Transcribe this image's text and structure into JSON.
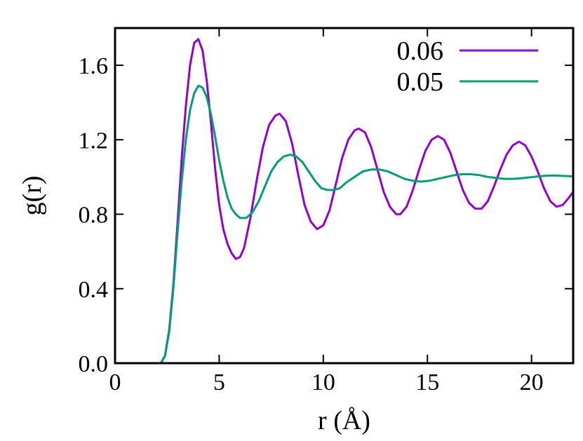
{
  "chart_data": {
    "type": "line",
    "title": "",
    "xlabel": "r (Å)",
    "ylabel": "g(r)",
    "xlim": [
      0,
      22
    ],
    "ylim": [
      0,
      1.8
    ],
    "xticks": [
      0,
      5,
      10,
      15,
      20
    ],
    "yticks": [
      0.0,
      0.4,
      0.8,
      1.2,
      1.6
    ],
    "xtick_labels": [
      "0",
      "5",
      "10",
      "15",
      "20"
    ],
    "ytick_labels": [
      "0.0",
      "0.4",
      "0.8",
      "1.2",
      "1.6"
    ],
    "grid": false,
    "legend": "top-right",
    "series": [
      {
        "name": "0.06",
        "color": "#9400d3",
        "points": [
          [
            2.0,
            0.0
          ],
          [
            2.2,
            0.0
          ],
          [
            2.4,
            0.04
          ],
          [
            2.6,
            0.18
          ],
          [
            2.8,
            0.42
          ],
          [
            3.0,
            0.75
          ],
          [
            3.2,
            1.1
          ],
          [
            3.4,
            1.38
          ],
          [
            3.6,
            1.6
          ],
          [
            3.8,
            1.72
          ],
          [
            4.0,
            1.74
          ],
          [
            4.2,
            1.68
          ],
          [
            4.4,
            1.52
          ],
          [
            4.6,
            1.3
          ],
          [
            4.8,
            1.05
          ],
          [
            5.0,
            0.85
          ],
          [
            5.2,
            0.72
          ],
          [
            5.4,
            0.64
          ],
          [
            5.6,
            0.59
          ],
          [
            5.8,
            0.56
          ],
          [
            6.0,
            0.57
          ],
          [
            6.2,
            0.62
          ],
          [
            6.5,
            0.78
          ],
          [
            6.8,
            0.98
          ],
          [
            7.1,
            1.16
          ],
          [
            7.4,
            1.28
          ],
          [
            7.7,
            1.33
          ],
          [
            7.9,
            1.34
          ],
          [
            8.2,
            1.3
          ],
          [
            8.5,
            1.18
          ],
          [
            8.8,
            1.01
          ],
          [
            9.1,
            0.85
          ],
          [
            9.4,
            0.76
          ],
          [
            9.7,
            0.72
          ],
          [
            10.0,
            0.74
          ],
          [
            10.3,
            0.82
          ],
          [
            10.6,
            0.96
          ],
          [
            10.9,
            1.1
          ],
          [
            11.2,
            1.2
          ],
          [
            11.5,
            1.25
          ],
          [
            11.7,
            1.26
          ],
          [
            12.0,
            1.24
          ],
          [
            12.3,
            1.16
          ],
          [
            12.6,
            1.04
          ],
          [
            12.9,
            0.92
          ],
          [
            13.2,
            0.84
          ],
          [
            13.5,
            0.8
          ],
          [
            13.7,
            0.8
          ],
          [
            14.0,
            0.84
          ],
          [
            14.3,
            0.93
          ],
          [
            14.6,
            1.04
          ],
          [
            14.9,
            1.14
          ],
          [
            15.2,
            1.2
          ],
          [
            15.5,
            1.22
          ],
          [
            15.8,
            1.2
          ],
          [
            16.1,
            1.13
          ],
          [
            16.4,
            1.03
          ],
          [
            16.7,
            0.93
          ],
          [
            17.0,
            0.86
          ],
          [
            17.3,
            0.83
          ],
          [
            17.6,
            0.83
          ],
          [
            17.9,
            0.87
          ],
          [
            18.2,
            0.95
          ],
          [
            18.5,
            1.04
          ],
          [
            18.8,
            1.12
          ],
          [
            19.1,
            1.17
          ],
          [
            19.4,
            1.19
          ],
          [
            19.7,
            1.17
          ],
          [
            20.0,
            1.11
          ],
          [
            20.3,
            1.03
          ],
          [
            20.6,
            0.94
          ],
          [
            20.9,
            0.87
          ],
          [
            21.2,
            0.84
          ],
          [
            21.5,
            0.85
          ],
          [
            21.8,
            0.89
          ],
          [
            22.0,
            0.92
          ]
        ]
      },
      {
        "name": "0.05",
        "color": "#009e73",
        "points": [
          [
            2.0,
            0.0
          ],
          [
            2.2,
            0.0
          ],
          [
            2.4,
            0.04
          ],
          [
            2.6,
            0.17
          ],
          [
            2.8,
            0.4
          ],
          [
            3.0,
            0.7
          ],
          [
            3.2,
            0.98
          ],
          [
            3.4,
            1.2
          ],
          [
            3.6,
            1.36
          ],
          [
            3.8,
            1.45
          ],
          [
            4.0,
            1.49
          ],
          [
            4.2,
            1.48
          ],
          [
            4.4,
            1.43
          ],
          [
            4.6,
            1.34
          ],
          [
            4.8,
            1.22
          ],
          [
            5.0,
            1.09
          ],
          [
            5.2,
            0.98
          ],
          [
            5.4,
            0.89
          ],
          [
            5.6,
            0.83
          ],
          [
            5.8,
            0.8
          ],
          [
            6.0,
            0.78
          ],
          [
            6.3,
            0.78
          ],
          [
            6.6,
            0.81
          ],
          [
            6.9,
            0.87
          ],
          [
            7.2,
            0.95
          ],
          [
            7.5,
            1.03
          ],
          [
            7.8,
            1.08
          ],
          [
            8.1,
            1.11
          ],
          [
            8.4,
            1.12
          ],
          [
            8.7,
            1.11
          ],
          [
            9.0,
            1.08
          ],
          [
            9.3,
            1.03
          ],
          [
            9.6,
            0.98
          ],
          [
            9.9,
            0.94
          ],
          [
            10.2,
            0.93
          ],
          [
            10.5,
            0.93
          ],
          [
            10.8,
            0.94
          ],
          [
            11.1,
            0.97
          ],
          [
            11.5,
            1.0
          ],
          [
            11.9,
            1.03
          ],
          [
            12.3,
            1.04
          ],
          [
            12.7,
            1.04
          ],
          [
            13.1,
            1.03
          ],
          [
            13.5,
            1.01
          ],
          [
            13.9,
            0.99
          ],
          [
            14.3,
            0.98
          ],
          [
            14.7,
            0.975
          ],
          [
            15.1,
            0.98
          ],
          [
            15.5,
            0.99
          ],
          [
            15.9,
            1.0
          ],
          [
            16.3,
            1.01
          ],
          [
            16.7,
            1.015
          ],
          [
            17.1,
            1.015
          ],
          [
            17.5,
            1.01
          ],
          [
            17.9,
            1.0
          ],
          [
            18.3,
            0.995
          ],
          [
            18.7,
            0.99
          ],
          [
            19.1,
            0.99
          ],
          [
            19.5,
            0.993
          ],
          [
            19.9,
            0.998
          ],
          [
            20.3,
            1.003
          ],
          [
            20.7,
            1.007
          ],
          [
            21.1,
            1.008
          ],
          [
            21.5,
            1.006
          ],
          [
            22.0,
            1.003
          ]
        ]
      }
    ]
  }
}
